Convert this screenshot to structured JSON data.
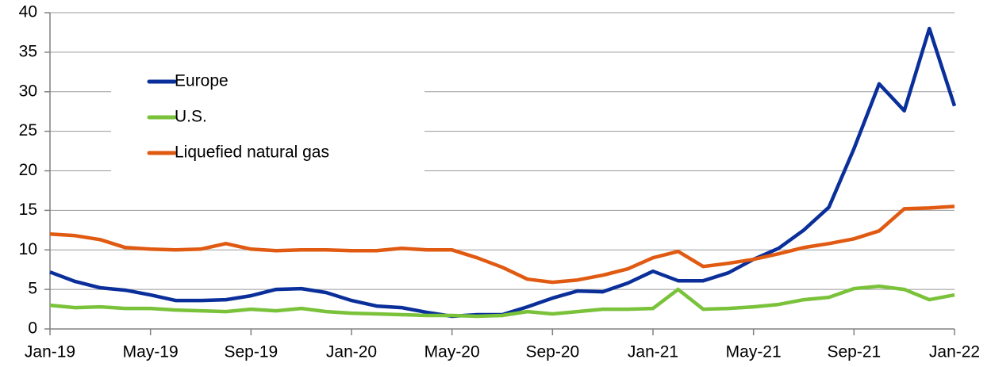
{
  "chart_data": {
    "type": "line",
    "categories": [
      "Jan-19",
      null,
      null,
      null,
      "May-19",
      null,
      null,
      null,
      "Sep-19",
      null,
      null,
      null,
      "Jan-20",
      null,
      null,
      null,
      "May-20",
      null,
      null,
      null,
      "Sep-20",
      null,
      null,
      null,
      "Jan-21",
      null,
      null,
      null,
      "May-21",
      null,
      null,
      null,
      "Sep-21",
      null,
      null,
      null,
      "Jan-22"
    ],
    "series": [
      {
        "name": "Europe",
        "color": "#0a2f9a",
        "values": [
          7.2,
          6.0,
          5.2,
          4.9,
          4.3,
          3.6,
          3.6,
          3.7,
          4.2,
          5.0,
          5.1,
          4.6,
          3.6,
          2.9,
          2.7,
          2.1,
          1.6,
          1.8,
          1.8,
          2.8,
          3.9,
          4.8,
          4.7,
          5.8,
          7.3,
          6.1,
          6.1,
          7.1,
          8.8,
          10.2,
          12.5,
          15.4,
          22.8,
          31.0,
          27.6,
          38.0,
          28.2
        ]
      },
      {
        "name": "U.S.",
        "color": "#7ac23a",
        "values": [
          3.0,
          2.7,
          2.8,
          2.6,
          2.6,
          2.4,
          2.3,
          2.2,
          2.5,
          2.3,
          2.6,
          2.2,
          2.0,
          1.9,
          1.8,
          1.7,
          1.7,
          1.6,
          1.7,
          2.2,
          1.9,
          2.2,
          2.5,
          2.5,
          2.6,
          5.0,
          2.5,
          2.6,
          2.8,
          3.1,
          3.7,
          4.0,
          5.1,
          5.4,
          5.0,
          3.7,
          4.3
        ]
      },
      {
        "name": "Liquefied natural gas",
        "color": "#e05a12",
        "values": [
          12.0,
          11.8,
          11.3,
          10.3,
          10.1,
          10.0,
          10.1,
          10.8,
          10.1,
          9.9,
          10.0,
          10.0,
          9.9,
          9.9,
          10.2,
          10.0,
          10.0,
          9.0,
          7.8,
          6.3,
          5.9,
          6.2,
          6.8,
          7.6,
          9.0,
          9.8,
          7.9,
          8.3,
          8.8,
          9.5,
          10.3,
          10.8,
          11.4,
          12.4,
          15.2,
          15.3,
          15.5
        ]
      }
    ],
    "ylim": [
      0,
      40
    ],
    "yticks": [
      0,
      5,
      10,
      15,
      20,
      25,
      30,
      35,
      40
    ],
    "grid": true,
    "legend": "upper left"
  }
}
